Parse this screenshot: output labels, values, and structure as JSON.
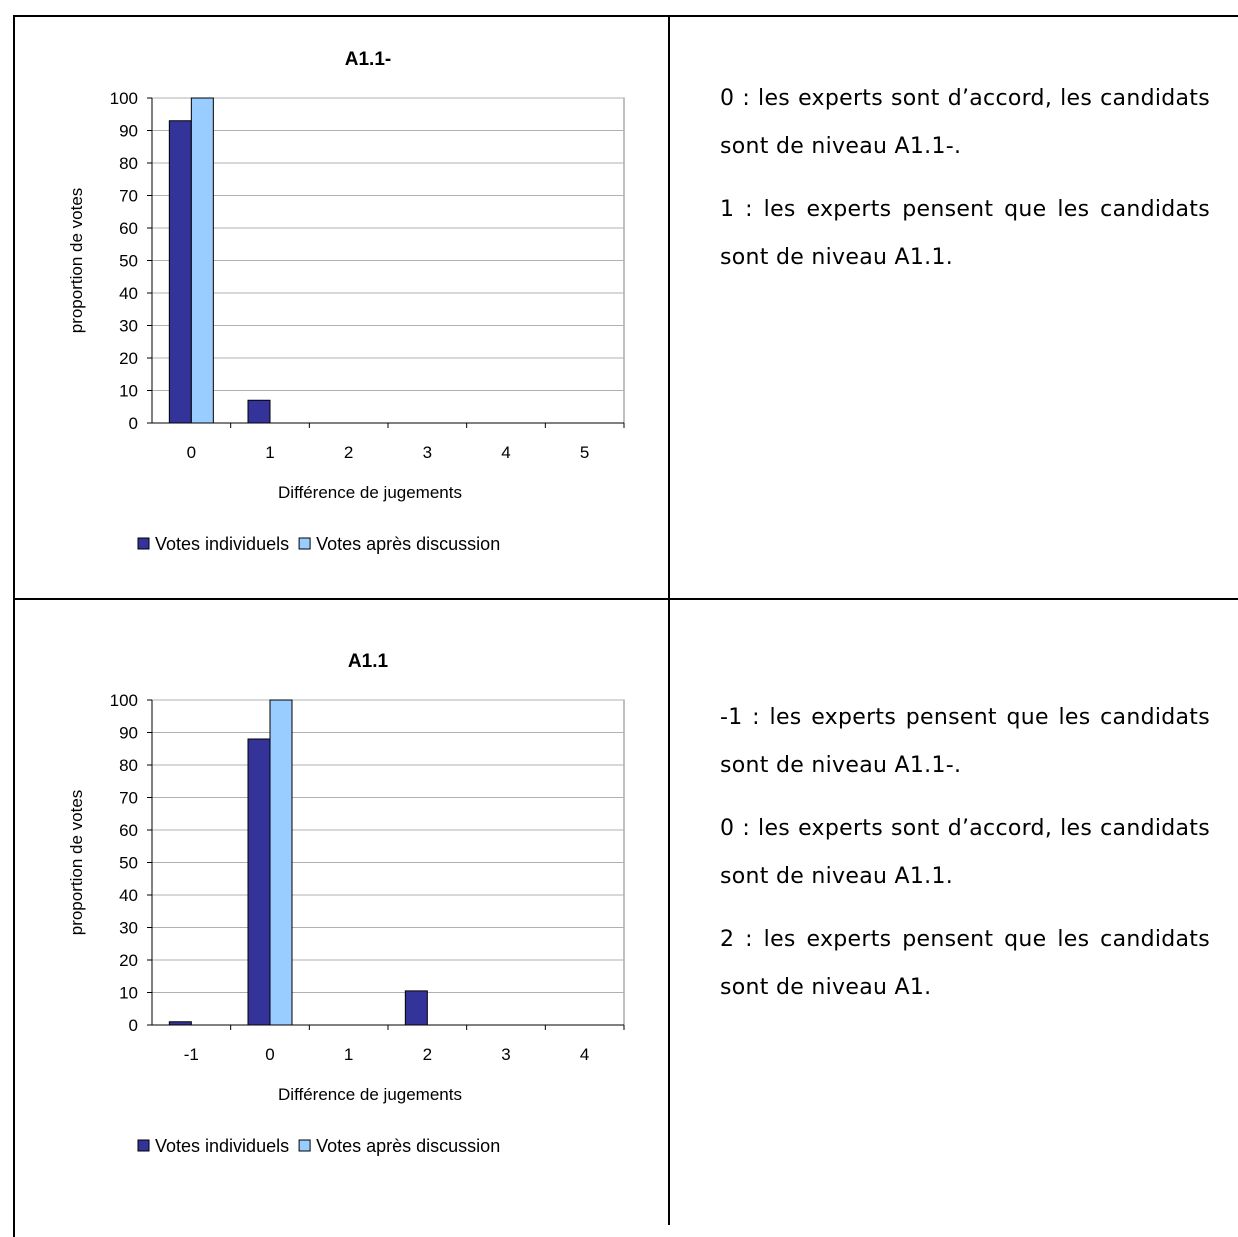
{
  "chart_data": [
    {
      "type": "bar",
      "title": "A1.1-",
      "xlabel": "Différence de jugements",
      "ylabel": "proportion de votes",
      "categories": [
        "0",
        "1",
        "2",
        "3",
        "4",
        "5"
      ],
      "series": [
        {
          "name": "Votes individuels",
          "color": "#333399",
          "values": [
            93,
            7,
            0,
            0,
            0,
            0
          ]
        },
        {
          "name": "Votes après discussion",
          "color": "#99CCFF",
          "values": [
            100,
            0,
            0,
            0,
            0,
            0
          ]
        }
      ],
      "ylim": [
        0,
        100
      ],
      "yticks": [
        0,
        10,
        20,
        30,
        40,
        50,
        60,
        70,
        80,
        90,
        100
      ],
      "grid": true,
      "legend": "bottom"
    },
    {
      "type": "bar",
      "title": "A1.1",
      "xlabel": "Différence de jugements",
      "ylabel": "proportion de votes",
      "categories": [
        "-1",
        "0",
        "1",
        "2",
        "3",
        "4"
      ],
      "series": [
        {
          "name": "Votes individuels",
          "color": "#333399",
          "values": [
            1,
            88,
            0,
            10.5,
            0,
            0
          ]
        },
        {
          "name": "Votes après discussion",
          "color": "#99CCFF",
          "values": [
            0,
            100,
            0,
            0,
            0,
            0
          ]
        }
      ],
      "ylim": [
        0,
        100
      ],
      "yticks": [
        0,
        10,
        20,
        30,
        40,
        50,
        60,
        70,
        80,
        90,
        100
      ],
      "grid": true,
      "legend": "bottom"
    }
  ],
  "notes": [
    {
      "paragraphs": [
        "0 : les experts sont d’accord, les candidats sont de niveau A1.1-.",
        "1 : les experts pensent que les candidats sont de niveau A1.1."
      ]
    },
    {
      "paragraphs": [
        "-1 : les experts pensent que les candidats sont de niveau A1.1-.",
        "0 : les experts sont d’accord, les candidats sont de niveau A1.1.",
        "2 : les experts pensent que les candidats sont de niveau A1."
      ]
    }
  ]
}
